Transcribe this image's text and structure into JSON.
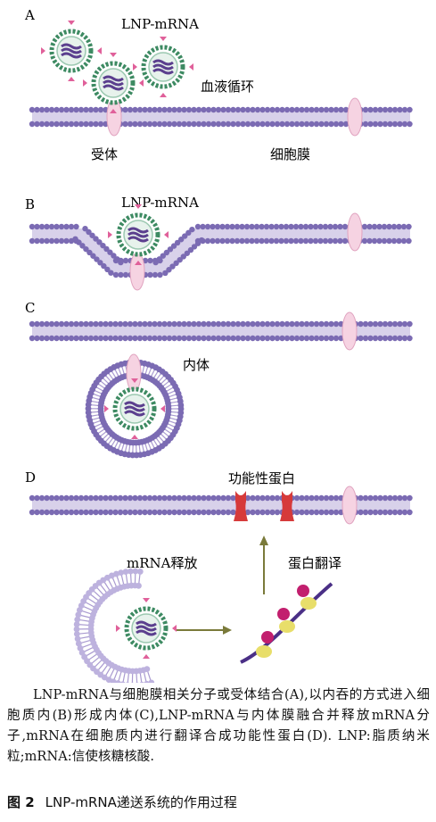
{
  "panels": {
    "A": {
      "letter": "A",
      "lnp_label": "LNP-mRNA",
      "blood_label": "血液循环",
      "receptor_label": "受体",
      "membrane_label": "细胞膜"
    },
    "B": {
      "letter": "B",
      "lnp_label": "LNP-mRNA"
    },
    "C": {
      "letter": "C",
      "endosome_label": "内体"
    },
    "D": {
      "letter": "D",
      "protein_label": "功能性蛋白",
      "release_label": "mRNA释放",
      "translation_label": "蛋白翻译"
    }
  },
  "caption": {
    "text": "LNP-mRNA与细胞膜相关分子或受体结合(A),以内吞的方式进入细胞质内(B)形成内体(C),LNP-mRNA与内体膜融合并释放mRNA分子,mRNA在细胞质内进行翻译合成功能性蛋白(D). LNP:脂质纳米粒;mRNA:信使核糖核酸.",
    "figure_number": "图 2",
    "figure_title": "LNP-mRNA递送系统的作用过程"
  },
  "colors": {
    "lipid": "#7b6bb3",
    "lipid_tail": "#a99ad0",
    "receptor": "#f3c9dc",
    "lnp_shell": "#3d8a62",
    "protein": "#d63a3a",
    "ribosome": "#c21f6e",
    "ribosome_small": "#e6d95a",
    "arrow": "#7a7a3a"
  }
}
